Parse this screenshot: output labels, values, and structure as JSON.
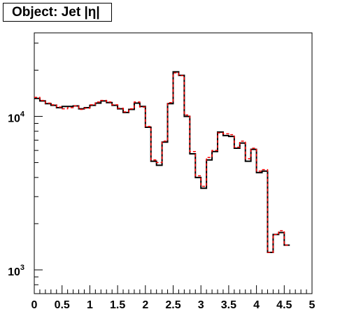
{
  "chart_data": {
    "type": "line",
    "title": "Object: Jet |η|",
    "xlabel": "",
    "ylabel": "",
    "xlim": [
      0,
      5
    ],
    "ylim": [
      700,
      35000
    ],
    "yscale": "log",
    "x_ticks": [
      "0",
      "0.5",
      "1",
      "1.5",
      "2",
      "2.5",
      "3",
      "3.5",
      "4",
      "4.5",
      "5"
    ],
    "y_ticks": [
      {
        "value": 1000,
        "base": "10",
        "exp": "3"
      },
      {
        "value": 10000,
        "base": "10",
        "exp": "4"
      }
    ],
    "bin_width": 0.1,
    "bin_edges_start": 0,
    "series": [
      {
        "color": "#000000",
        "style": "solid",
        "values": [
          13100,
          12600,
          12100,
          11800,
          11400,
          11600,
          11600,
          11700,
          11200,
          11400,
          11800,
          12200,
          12600,
          12300,
          11800,
          11200,
          10600,
          11100,
          12200,
          11600,
          8500,
          5100,
          4800,
          6800,
          12100,
          19500,
          18500,
          10000,
          5700,
          4000,
          3400,
          5200,
          5900,
          7900,
          7500,
          7400,
          6200,
          6700,
          5100,
          6100,
          4300,
          4400,
          1300,
          1700,
          1750,
          1450
        ]
      },
      {
        "color": "#ff0000",
        "style": "dashed",
        "values": [
          13300,
          12700,
          12200,
          11900,
          11500,
          11200,
          11400,
          11700,
          11100,
          11300,
          11900,
          12400,
          12700,
          12400,
          11900,
          11300,
          10700,
          11200,
          12400,
          11500,
          8600,
          5200,
          5000,
          6900,
          12300,
          19200,
          18400,
          10200,
          5900,
          4100,
          3500,
          5400,
          6000,
          7800,
          7700,
          7600,
          6300,
          6900,
          5300,
          6200,
          4400,
          4500,
          1300,
          1700,
          1800,
          1450
        ]
      }
    ]
  }
}
